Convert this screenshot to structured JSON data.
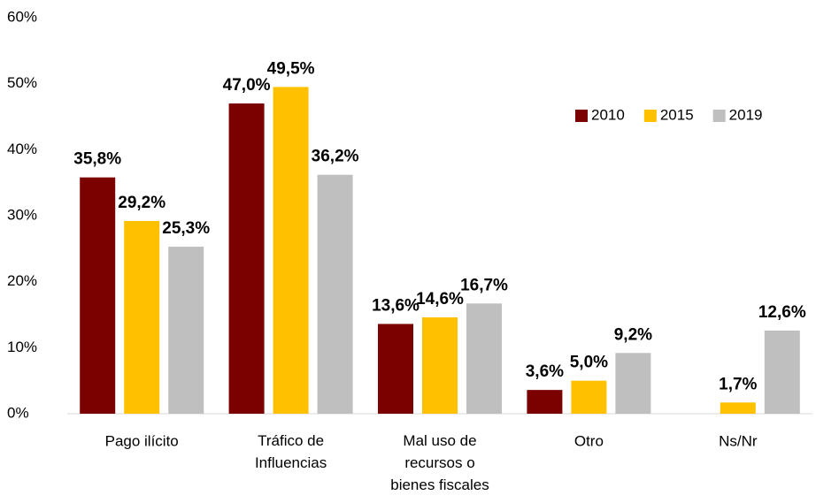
{
  "chart_data": {
    "type": "bar",
    "categories": [
      "Pago ilícito",
      "Tráfico de Influencias",
      "Mal uso de recursos o bienes fiscales",
      "Otro",
      "Ns/Nr"
    ],
    "series": [
      {
        "name": "2010",
        "color": "#7b0000",
        "values": [
          35.8,
          47.0,
          13.6,
          3.6,
          null
        ],
        "value_labels": [
          "35,8%",
          "47,0%",
          "13,6%",
          "3,6%",
          null
        ]
      },
      {
        "name": "2015",
        "color": "#ffc000",
        "values": [
          29.2,
          49.5,
          14.6,
          5.0,
          1.7
        ],
        "value_labels": [
          "29,2%",
          "49,5%",
          "14,6%",
          "5,0%",
          "1,7%"
        ]
      },
      {
        "name": "2019",
        "color": "#bfbfbf",
        "values": [
          25.3,
          36.2,
          16.7,
          9.2,
          12.6
        ],
        "value_labels": [
          "25,3%",
          "36,2%",
          "16,7%",
          "9,2%",
          "12,6%"
        ]
      }
    ],
    "ylim": [
      0,
      60
    ],
    "yticks": [
      {
        "value": 0,
        "label": "0%"
      },
      {
        "value": 10,
        "label": "10%"
      },
      {
        "value": 20,
        "label": "20%"
      },
      {
        "value": 30,
        "label": "30%"
      },
      {
        "value": 40,
        "label": "40%"
      },
      {
        "value": 50,
        "label": "50%"
      },
      {
        "value": 60,
        "label": "60%"
      }
    ],
    "grid": false,
    "legend": "upper right"
  }
}
